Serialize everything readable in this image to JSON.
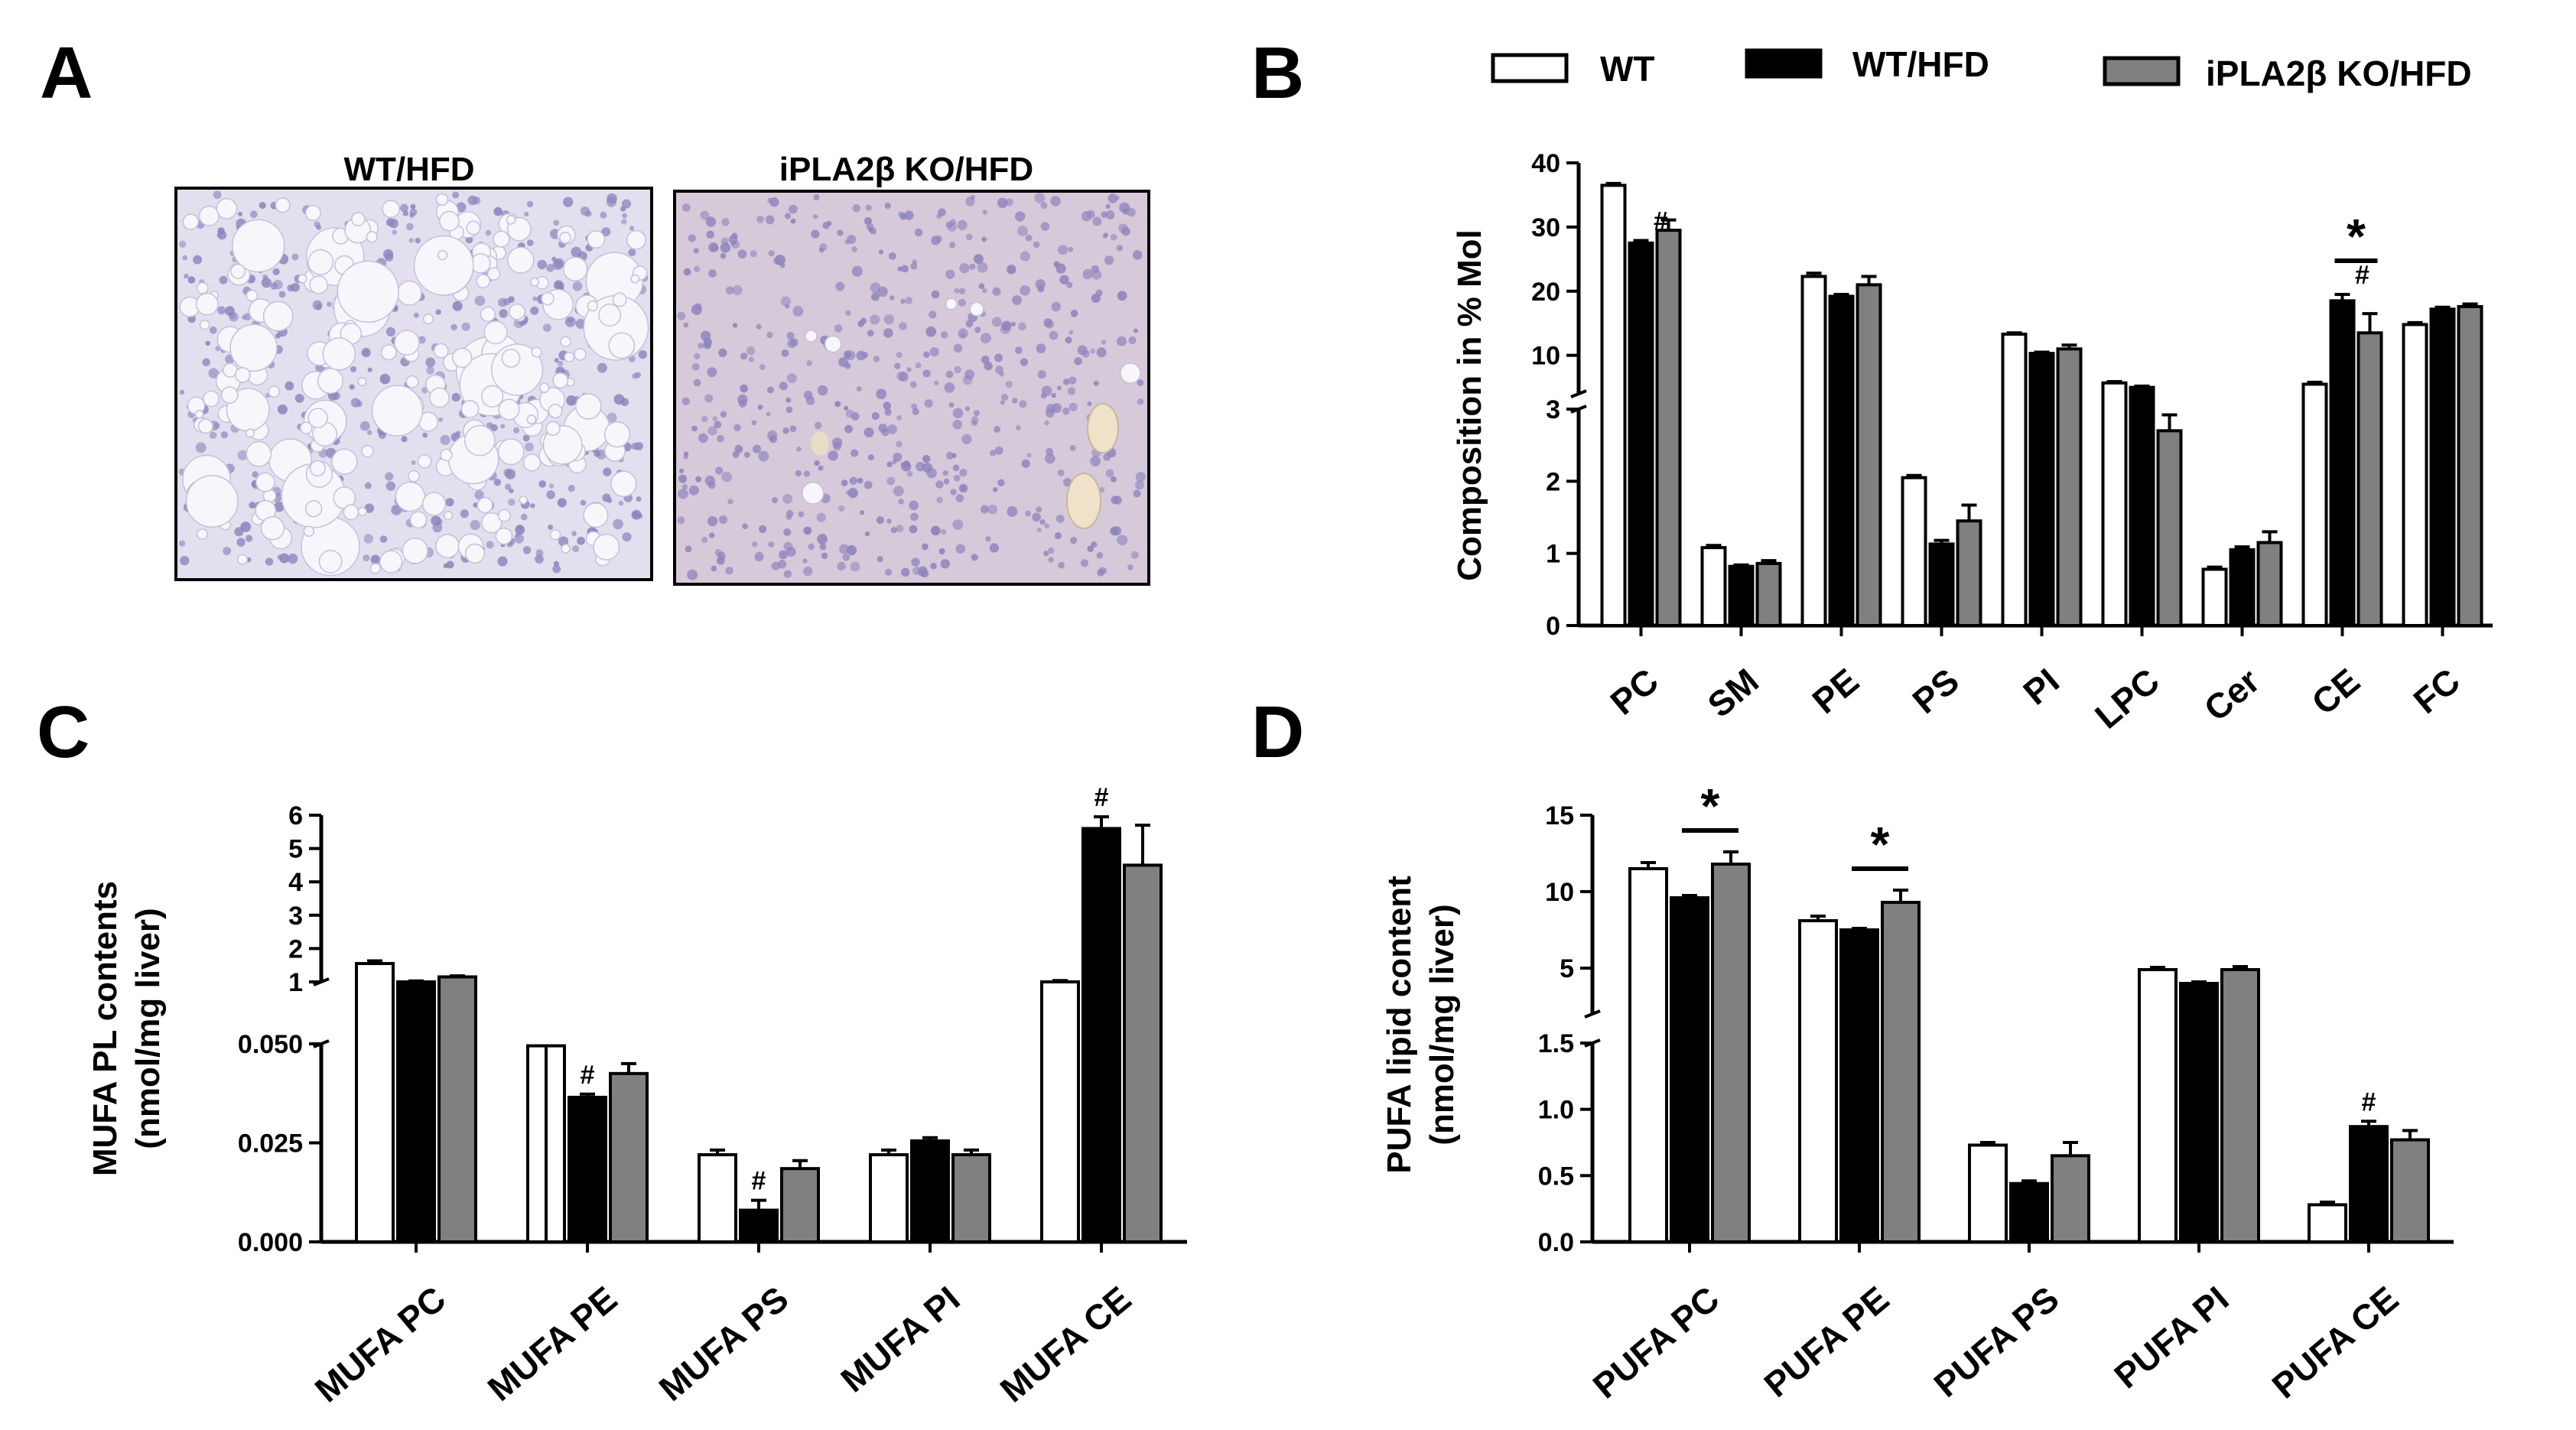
{
  "panels": {
    "A": "A",
    "B": "B",
    "C": "C",
    "D": "D"
  },
  "histology": {
    "left_title": "WT/HFD",
    "right_title": "iPLA2β KO/HFD"
  },
  "legend": [
    {
      "label": "WT",
      "fill": "#ffffff"
    },
    {
      "label": "WT/HFD",
      "fill": "#000000"
    },
    {
      "label": "iPLA2β KO/HFD",
      "fill": "#808080"
    }
  ],
  "colors": {
    "WT": "#ffffff",
    "WT/HFD": "#000000",
    "iPLA2β KO/HFD": "#808080",
    "histology_bg": "#d8d0e6",
    "histology_cells": "#8e84bd"
  },
  "chart_data": [
    {
      "panel": "B",
      "type": "bar",
      "ylabel": "Composition in % Mol",
      "categories": [
        "PC",
        "SM",
        "PE",
        "PS",
        "PI",
        "LPC",
        "Cer",
        "CE",
        "FC"
      ],
      "series": [
        {
          "name": "WT",
          "values": [
            36.5,
            1.08,
            22.3,
            2.05,
            13.3,
            5.7,
            0.78,
            5.5,
            14.8
          ]
        },
        {
          "name": "WT/HFD",
          "values": [
            27.5,
            0.82,
            19.2,
            1.13,
            10.3,
            5.0,
            1.05,
            18.5,
            17.2
          ]
        },
        {
          "name": "iPLA2β KO/HFD",
          "values": [
            29.5,
            0.86,
            21.0,
            1.45,
            11.0,
            2.7,
            1.15,
            13.5,
            17.6
          ]
        }
      ],
      "errors": [
        [
          0.3,
          0.03,
          0.5,
          0.03,
          0.2,
          0.2,
          0.03,
          0.3,
          0.3
        ],
        [
          0.4,
          0.02,
          0.3,
          0.05,
          0.2,
          0.2,
          0.04,
          1.0,
          0.3
        ],
        [
          1.6,
          0.04,
          1.3,
          0.22,
          0.6,
          0.22,
          0.15,
          3.0,
          0.4
        ]
      ],
      "ylim": [
        0,
        40
      ],
      "ytick_labels": [
        "0",
        "1",
        "2",
        "3",
        "10",
        "20",
        "30",
        "40"
      ],
      "axis_break": [
        3,
        4
      ],
      "annotations": [
        {
          "category": "PC",
          "series": 1,
          "text": "#"
        },
        {
          "category": "CE",
          "series": 1,
          "text": "#"
        },
        {
          "category": "CE",
          "between": [
            1,
            2
          ],
          "text": "*"
        }
      ]
    },
    {
      "panel": "C",
      "type": "bar",
      "ylabel": [
        "MUFA PL contents",
        "(nmol/mg liver)"
      ],
      "categories": [
        "MUFA PC",
        "MUFA PE",
        "MUFA PS",
        "MUFA PI",
        "MUFA CE"
      ],
      "series": [
        {
          "name": "WT",
          "values": [
            1.55,
            0.0495,
            0.022,
            0.022,
            1.0
          ]
        },
        {
          "name": "WT/HFD",
          "values": [
            1.0,
            0.0365,
            0.008,
            0.0255,
            5.6
          ]
        },
        {
          "name": "iPLA2β KO/HFD",
          "values": [
            1.15,
            0.0425,
            0.0185,
            0.022,
            4.5
          ]
        }
      ],
      "errors": [
        [
          0.08,
          0.0045,
          0.0012,
          0.0012,
          0.04
        ],
        [
          0.03,
          0.0008,
          0.0025,
          0.0008,
          0.35
        ],
        [
          0.03,
          0.0025,
          0.002,
          0.0012,
          1.2
        ]
      ],
      "ylim": [
        0,
        6
      ],
      "ytick_labels": [
        "0.000",
        "0.025",
        "0.050",
        "1",
        "2",
        "3",
        "4",
        "5",
        "6"
      ],
      "axis_break": [
        0.05,
        1
      ],
      "annotations": [
        {
          "category": "MUFA PE",
          "series": 1,
          "text": "#"
        },
        {
          "category": "MUFA PS",
          "series": 1,
          "text": "#"
        },
        {
          "category": "MUFA CE",
          "series": 1,
          "text": "#"
        }
      ]
    },
    {
      "panel": "D",
      "type": "bar",
      "ylabel": [
        "PUFA lipid content",
        "(nmol/mg liver)"
      ],
      "categories": [
        "PUFA PC",
        "PUFA PE",
        "PUFA PS",
        "PUFA PI",
        "PUFA CE"
      ],
      "series": [
        {
          "name": "WT",
          "values": [
            11.5,
            8.1,
            0.73,
            4.9,
            0.28
          ]
        },
        {
          "name": "WT/HFD",
          "values": [
            9.6,
            7.5,
            0.44,
            4.0,
            0.87
          ]
        },
        {
          "name": "iPLA2β KO/HFD",
          "values": [
            11.8,
            9.3,
            0.65,
            4.9,
            0.77
          ]
        }
      ],
      "errors": [
        [
          0.4,
          0.3,
          0.02,
          0.15,
          0.02
        ],
        [
          0.15,
          0.1,
          0.02,
          0.1,
          0.04
        ],
        [
          0.8,
          0.8,
          0.1,
          0.2,
          0.07
        ]
      ],
      "ylim": [
        0,
        15
      ],
      "ytick_labels": [
        "0.0",
        "0.5",
        "1.0",
        "1.5",
        "5",
        "10",
        "15"
      ],
      "axis_break": [
        1.5,
        2
      ],
      "annotations": [
        {
          "category": "PUFA PC",
          "between": [
            1,
            2
          ],
          "text": "*"
        },
        {
          "category": "PUFA PE",
          "between": [
            1,
            2
          ],
          "text": "*"
        },
        {
          "category": "PUFA CE",
          "series": 1,
          "text": "#"
        }
      ]
    }
  ]
}
